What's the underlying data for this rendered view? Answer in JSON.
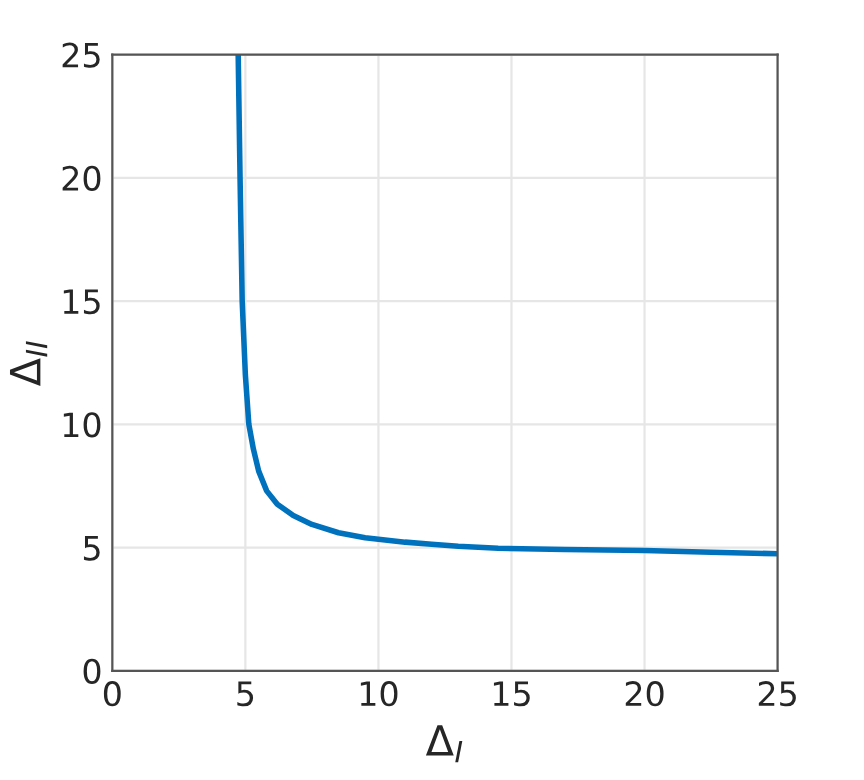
{
  "chart_data": {
    "type": "line",
    "xlabel": "Δ$_{I}$",
    "ylabel": "Δ$_{II}$",
    "xlim": [
      0,
      25
    ],
    "ylim": [
      0,
      25
    ],
    "xticks": [
      0,
      5,
      10,
      15,
      20,
      25
    ],
    "yticks": [
      0,
      5,
      10,
      15,
      20,
      25
    ],
    "grid": true,
    "series": [
      {
        "color": "#0072bd",
        "x": [
          4.73,
          4.8,
          4.88,
          5.0,
          5.13,
          5.3,
          5.5,
          5.8,
          6.2,
          6.8,
          7.5,
          8.5,
          9.5,
          11,
          12,
          13,
          14.5,
          17,
          20,
          22.5,
          25
        ],
        "values": [
          25,
          20,
          15,
          12,
          10,
          9,
          8.1,
          7.3,
          6.76,
          6.3,
          5.94,
          5.6,
          5.4,
          5.22,
          5.13,
          5.05,
          4.97,
          4.92,
          4.88,
          4.81,
          4.75
        ]
      }
    ]
  }
}
